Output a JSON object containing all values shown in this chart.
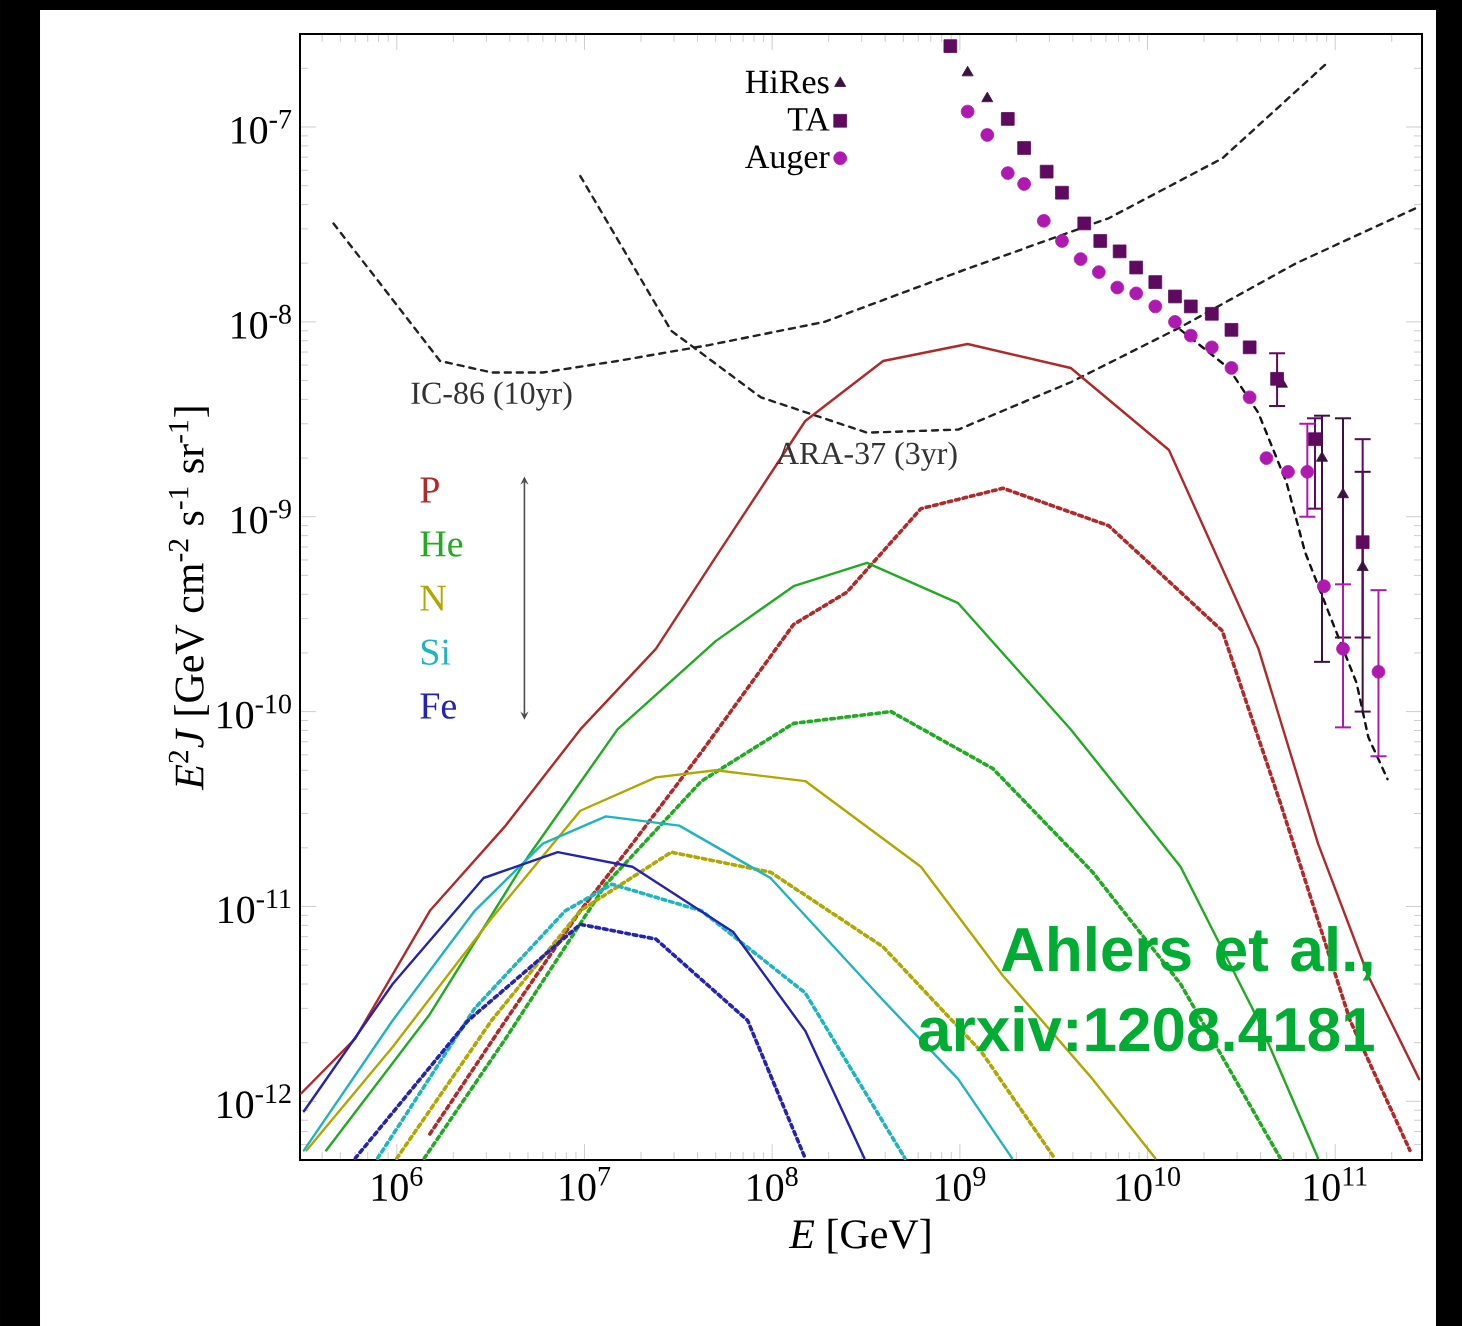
{
  "chart_data": {
    "type": "line",
    "log": "xy",
    "xlabel": "*E* [GeV]",
    "ylabel": "*E*$^{2}$*J* [GeV cm$^{-2}$ s$^{-1}$ sr$^{-1}$]",
    "xlim": [
      305000.0,
      290000000000.0
    ],
    "ylim": [
      5e-13,
      3e-07
    ],
    "xticks": [
      {
        "value": 1000000.0,
        "label": "10$^{6}$"
      },
      {
        "value": 10000000.0,
        "label": "10$^{7}$"
      },
      {
        "value": 100000000.0,
        "label": "10$^{8}$"
      },
      {
        "value": 1000000000.0,
        "label": "10$^{9}$"
      },
      {
        "value": 10000000000.0,
        "label": "10$^{10}$"
      },
      {
        "value": 100000000000.0,
        "label": "10$^{11}$"
      }
    ],
    "yticks": [
      {
        "value": 1e-12,
        "label": "10$^{-12}$"
      },
      {
        "value": 1e-11,
        "label": "10$^{-11}$"
      },
      {
        "value": 1e-10,
        "label": "10$^{-10}$"
      },
      {
        "value": 1e-09,
        "label": "10$^{-9}$"
      },
      {
        "value": 1e-08,
        "label": "10$^{-8}$"
      },
      {
        "value": 1e-07,
        "label": "10$^{-7}$"
      }
    ],
    "legend": "top",
    "annotations": [
      "Ahlers et al., arxiv:1208.4181"
    ],
    "series": [
      {
        "name": "IC-86 (10yr)",
        "type": "line",
        "line_style": "dashed",
        "color": "#222222",
        "x": [
          460000.0,
          1700000.0,
          3200000.0,
          6000000.0,
          15000000.0,
          46000000.0,
          190000000.0,
          980000000.0,
          6200000000.0,
          25000000000.0,
          89000000000.0
        ],
        "values": [
          3.2e-08,
          6.3e-09,
          5.5e-09,
          5.5e-09,
          6.3e-09,
          7.6e-09,
          1e-08,
          1.8e-08,
          3.4e-08,
          6.9e-08,
          2.1e-07
        ]
      },
      {
        "name": "ARA-37 (3yr)",
        "type": "line",
        "line_style": "dashed",
        "color": "#222222",
        "x": [
          9500000.0,
          29000000.0,
          87000000.0,
          320000000.0,
          980000000.0,
          3900000000.0,
          15000000000.0,
          62000000000.0,
          280000000000.0
        ],
        "values": [
          5.6e-08,
          9e-09,
          4.1e-09,
          2.7e-09,
          2.8e-09,
          4.9e-09,
          9.4e-09,
          2e-08,
          3.9e-08
        ]
      },
      {
        "name": "P",
        "type": "line",
        "line_style": "solid",
        "color": "#b02a2a",
        "x": [
          310000.0,
          600000.0,
          1500000.0,
          3800000.0,
          9500000.0,
          24000000.0,
          50000000.0,
          150000000.0,
          390000000.0,
          1100000000.0,
          3900000000.0,
          13000000000.0,
          39000000000.0,
          81000000000.0,
          150000000000.0,
          280000000000.0
        ],
        "values": [
          1.1e-12,
          2.1e-12,
          9.5e-12,
          2.6e-11,
          8.1e-11,
          2.1e-10,
          6.2e-10,
          3.1e-09,
          6.3e-09,
          7.7e-09,
          5.8e-09,
          2.2e-09,
          2.1e-10,
          2.1e-11,
          4.4e-12,
          1.3e-12
        ]
      },
      {
        "type": "line",
        "line_style": "dotted",
        "color": "#b02a2a",
        "x": [
          1500000.0,
          3800000.0,
          9500000.0,
          18000000.0,
          42000000.0,
          130000000.0,
          250000000.0,
          620000000.0,
          1700000000.0,
          6200000000.0,
          15000000000.0,
          25000000000.0,
          51000000000.0,
          120000000000.0,
          250000000000.0
        ],
        "values": [
          6.8e-13,
          2.6e-12,
          9.5e-12,
          2.1e-11,
          6.2e-11,
          2.8e-10,
          4.1e-10,
          1.1e-09,
          1.4e-09,
          9e-10,
          4.1e-10,
          2.6e-10,
          3.4e-11,
          2.6e-12,
          5.6e-13
        ]
      },
      {
        "name": "He",
        "type": "line",
        "line_style": "solid",
        "color": "#22aa22",
        "x": [
          420000.0,
          1500000.0,
          5000000.0,
          15000000.0,
          50000000.0,
          130000000.0,
          320000000.0,
          980000000.0,
          3900000000.0,
          15000000000.0,
          39000000000.0,
          81000000000.0
        ],
        "values": [
          5.6e-13,
          2.8e-12,
          1.8e-11,
          8.1e-11,
          2.3e-10,
          4.4e-10,
          5.8e-10,
          3.6e-10,
          8.1e-11,
          1.6e-11,
          2.6e-12,
          5.1e-13
        ]
      },
      {
        "type": "line",
        "line_style": "dotted",
        "color": "#22aa22",
        "x": [
          1400000.0,
          3800000.0,
          13000000.0,
          42000000.0,
          130000000.0,
          430000000.0,
          1500000000.0,
          5100000000.0,
          15000000000.0,
          51000000000.0
        ],
        "values": [
          5.1e-13,
          2.1e-12,
          1.3e-11,
          4.4e-11,
          8.7e-11,
          1e-10,
          5.1e-11,
          1.5e-11,
          4e-12,
          5.1e-13
        ]
      },
      {
        "name": "N",
        "type": "line",
        "line_style": "solid",
        "color": "#b0a800",
        "x": [
          330000.0,
          950000.0,
          3200000.0,
          9500000.0,
          24000000.0,
          50000000.0,
          150000000.0,
          620000000.0,
          1700000000.0,
          5100000000.0,
          11000000000.0
        ],
        "values": [
          5.6e-13,
          1.9e-12,
          8.7e-12,
          3.1e-11,
          4.6e-11,
          5e-11,
          4.4e-11,
          1.6e-11,
          4.4e-12,
          1.3e-12,
          5.1e-13
        ]
      },
      {
        "type": "line",
        "line_style": "dotted",
        "color": "#b0a800",
        "x": [
          1000000.0,
          3200000.0,
          9500000.0,
          29000000.0,
          98000000.0,
          390000000.0,
          1300000000.0,
          3200000000.0
        ],
        "values": [
          5.1e-13,
          2.6e-12,
          9.5e-12,
          1.9e-11,
          1.5e-11,
          6.2e-12,
          1.8e-12,
          5.1e-13
        ]
      },
      {
        "name": "Si",
        "type": "line",
        "line_style": "solid",
        "color": "#20b4c0",
        "x": [
          320000.0,
          950000.0,
          2600000.0,
          6000000.0,
          13000000.0,
          32000000.0,
          98000000.0,
          390000000.0,
          980000000.0,
          1900000000.0
        ],
        "values": [
          5.6e-13,
          2.6e-12,
          9.5e-12,
          2.1e-11,
          2.9e-11,
          2.6e-11,
          1.4e-11,
          3.3e-12,
          1.3e-12,
          5.1e-13
        ]
      },
      {
        "type": "line",
        "line_style": "dotted",
        "color": "#20b4c0",
        "x": [
          790000.0,
          2600000.0,
          7900000.0,
          14000000.0,
          42000000.0,
          150000000.0,
          510000000.0
        ],
        "values": [
          5.1e-13,
          3e-12,
          9.5e-12,
          1.3e-11,
          9.5e-12,
          3.6e-12,
          5.1e-13
        ]
      },
      {
        "name": "Fe",
        "type": "line",
        "line_style": "solid",
        "color": "#2424b0",
        "x": [
          320000.0,
          950000.0,
          2900000.0,
          7200000.0,
          18000000.0,
          62000000.0,
          150000000.0,
          310000000.0
        ],
        "values": [
          8.9e-13,
          4e-12,
          1.4e-11,
          1.9e-11,
          1.6e-11,
          7.4e-12,
          2.3e-12,
          5.1e-13
        ]
      },
      {
        "type": "line",
        "line_style": "dotted",
        "color": "#2424b0",
        "x": [
          600000.0,
          2400000.0,
          9500000.0,
          24000000.0,
          74000000.0,
          150000000.0
        ],
        "values": [
          5.1e-13,
          2.6e-12,
          8.1e-12,
          6.8e-12,
          2.6e-12,
          5.1e-13
        ]
      },
      {
        "type": "line",
        "line_style": "dashed",
        "color": "#111111",
        "x": [
          15000000000.0,
          27000000000.0,
          39000000000.0,
          55000000000.0,
          69000000000.0,
          95000000000.0,
          130000000000.0,
          150000000000.0,
          190000000000.0
        ],
        "values": [
          9.1e-09,
          5.8e-09,
          3.4e-09,
          1.5e-09,
          6.6e-10,
          3e-10,
          1.4e-10,
          7.4e-11,
          4.5e-11
        ]
      },
      {
        "name": "HiRes",
        "type": "scatter",
        "marker": "triangle",
        "color": "#3c1040",
        "x": [
          1100000000.0,
          1400000000.0,
          52000000000.0,
          85000000000.0,
          110000000000.0,
          140000000000.0
        ],
        "values": [
          1.9e-07,
          1.4e-07,
          4.8e-09,
          2e-09,
          1.3e-09,
          5.5e-10
        ],
        "errors": [
          null,
          null,
          null,
          [
            1.8e-10,
            3.3e-09
          ],
          [
            2.4e-10,
            3.2e-09
          ],
          [
            1e-10,
            1.7e-09
          ]
        ]
      },
      {
        "name": "TA",
        "type": "scatter",
        "marker": "square",
        "color": "#5e0a5e",
        "x": [
          890000000.0,
          1800000000.0,
          2200000000.0,
          2900000000.0,
          3500000000.0,
          4600000000.0,
          5600000000.0,
          7100000000.0,
          8700000000.0,
          11000000000.0,
          14000000000.0,
          17000000000.0,
          22000000000.0,
          28000000000.0,
          35000000000.0,
          49000000000.0,
          78000000000.0,
          140000000000.0
        ],
        "values": [
          2.6e-07,
          1.1e-07,
          7.8e-08,
          5.9e-08,
          4.6e-08,
          3.2e-08,
          2.6e-08,
          2.3e-08,
          1.9e-08,
          1.6e-08,
          1.35e-08,
          1.2e-08,
          1.1e-08,
          9.1e-09,
          7.4e-09,
          5.1e-09,
          2.5e-09,
          7.4e-10
        ],
        "errors": [
          null,
          null,
          null,
          null,
          null,
          null,
          null,
          null,
          null,
          null,
          null,
          null,
          null,
          null,
          null,
          [
            3.7e-09,
            6.9e-09
          ],
          [
            1.1e-09,
            3.2e-09
          ],
          [
            2.4e-10,
            2.5e-09
          ]
        ]
      },
      {
        "name": "Auger",
        "type": "scatter",
        "marker": "circle",
        "color": "#b019b0",
        "x": [
          1100000000.0,
          1400000000.0,
          1800000000.0,
          2200000000.0,
          2800000000.0,
          3500000000.0,
          4400000000.0,
          5500000000.0,
          6900000000.0,
          8700000000.0,
          11000000000.0,
          14000000000.0,
          17000000000.0,
          22000000000.0,
          28000000000.0,
          35000000000.0,
          43000000000.0,
          56000000000.0,
          71000000000.0,
          87000000000.0,
          110000000000.0,
          170000000000.0
        ],
        "values": [
          1.2e-07,
          9.1e-08,
          5.8e-08,
          5.1e-08,
          3.3e-08,
          2.6e-08,
          2.1e-08,
          1.8e-08,
          1.5e-08,
          1.4e-08,
          1.2e-08,
          1e-08,
          8.5e-09,
          7.4e-09,
          5.8e-09,
          4.1e-09,
          2e-09,
          1.7e-09,
          1.7e-09,
          4.4e-10,
          2.1e-10,
          1.6e-10
        ],
        "errors": [
          null,
          null,
          null,
          null,
          null,
          null,
          null,
          null,
          null,
          null,
          null,
          null,
          null,
          null,
          null,
          null,
          null,
          null,
          [
            1e-09,
            3e-09
          ],
          null,
          [
            8.3e-11,
            4.5e-10
          ],
          [
            5.9e-11,
            4.2e-10
          ]
        ]
      }
    ]
  }
}
